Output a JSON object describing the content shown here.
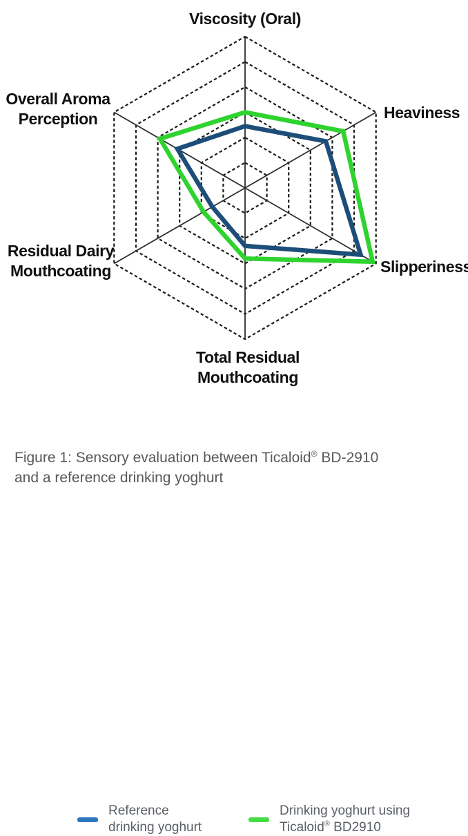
{
  "figure": {
    "caption_line1": "Figure 1: Sensory evaluation between Ticaloid® BD-2910",
    "caption_line2": "and a reference drinking yoghurt"
  },
  "legend": {
    "position": "bottom",
    "items": [
      {
        "name": "Reference drinking yoghurt",
        "line1": "Reference",
        "line2": "drinking yoghurt",
        "color": "#2e78be"
      },
      {
        "name": "Drinking yoghurt using Ticaloid® BD2910",
        "line1": "Drinking yoghurt using",
        "line2": "Ticaloid® BD2910",
        "color": "#45dc45"
      }
    ]
  },
  "chart_data": {
    "type": "radar",
    "title": "",
    "axes": [
      {
        "label": "Viscosity (Oral)",
        "lines": [
          "Viscosity (Oral)"
        ]
      },
      {
        "label": "Heaviness",
        "lines": [
          "Heaviness"
        ]
      },
      {
        "label": "Slipperiness",
        "lines": [
          "Slipperiness"
        ]
      },
      {
        "label": "Total Residual Mouthcoating",
        "lines": [
          "Total Residual",
          "Mouthcoating"
        ]
      },
      {
        "label": "Residual Dairy Mouthcoating",
        "lines": [
          "Residual Dairy",
          "Mouthcoating"
        ]
      },
      {
        "label": "Overall Aroma Perception",
        "lines": [
          "Overall Aroma",
          "Perception"
        ]
      }
    ],
    "scale": {
      "min": 0,
      "max": 6,
      "rings": 6,
      "grid_style": "dashed",
      "spoke_style": "solid"
    },
    "series": [
      {
        "name": "Reference drinking yoghurt",
        "color": "#1d4e79",
        "values": [
          2.45,
          3.7,
          5.3,
          2.3,
          1.5,
          3.1
        ]
      },
      {
        "name": "Drinking yoghurt using Ticaloid® BD2910",
        "color": "#2fd32f",
        "values": [
          3.0,
          4.5,
          5.85,
          2.8,
          1.9,
          3.9
        ]
      }
    ],
    "legend_position": "bottom"
  }
}
